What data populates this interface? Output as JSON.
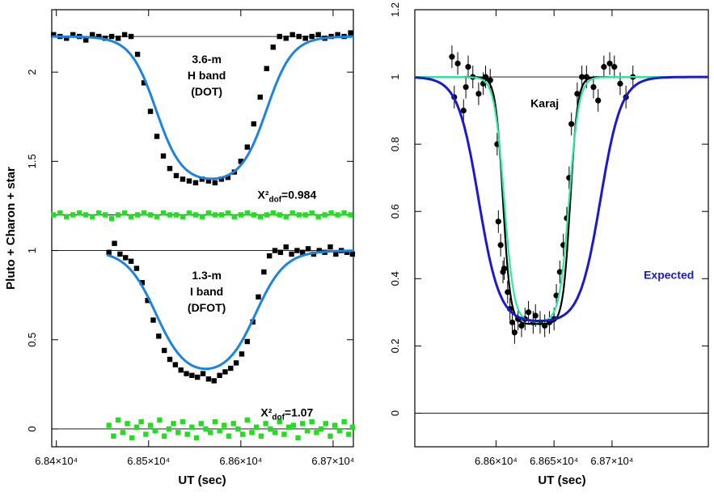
{
  "chart_data": [
    {
      "type": "scatter",
      "panel": "left",
      "xlabel": "UT (sec)",
      "ylabel": "Pluto + Charon + star",
      "xlim": [
        68395,
        68722
      ],
      "ylim": [
        -0.1,
        2.35
      ],
      "x_ticks": [
        {
          "value": 68400,
          "label": "6.84×10⁴"
        },
        {
          "value": 68500,
          "label": "6.85×10⁴"
        },
        {
          "value": 68600,
          "label": "6.86×10⁴"
        },
        {
          "value": 68700,
          "label": "6.87×10⁴"
        }
      ],
      "y_ticks": [
        {
          "value": 0,
          "label": "0"
        },
        {
          "value": 0.5,
          "label": "0.5"
        },
        {
          "value": 1,
          "label": "1"
        },
        {
          "value": 1.5,
          "label": "1.5"
        },
        {
          "value": 2,
          "label": "2"
        }
      ],
      "reference_lines": [
        2.2,
        1.2,
        1.0,
        0.0
      ],
      "annotations": [
        {
          "lines": [
            "3.6-m",
            "H band",
            "(DOT)"
          ],
          "x": 68563,
          "y": 2.05
        },
        {
          "text": "X²dof=0.984",
          "x": 68650,
          "y": 1.29
        },
        {
          "lines": [
            "1.3-m",
            "I band",
            "(DFOT)"
          ],
          "x": 68563,
          "y": 0.84
        },
        {
          "text": "X²dof=1.07",
          "x": 68650,
          "y": 0.07
        }
      ],
      "series": [
        {
          "role": "data",
          "marker": "square",
          "color": "#000000",
          "segment": "H band",
          "x": [
            68397,
            68404,
            68411,
            68418,
            68425,
            68432,
            68439,
            68446,
            68453,
            68460,
            68467,
            68474,
            68481,
            68488,
            68495,
            68502,
            68509,
            68516,
            68523,
            68530,
            68537,
            68544,
            68551,
            68558,
            68565,
            68572,
            68579,
            68586,
            68593,
            68600,
            68607,
            68614,
            68621,
            68628,
            68635,
            68642,
            68649,
            68656,
            68663,
            68670,
            68677,
            68684,
            68691,
            68698,
            68705,
            68712,
            68719
          ],
          "y": [
            2.21,
            2.2,
            2.19,
            2.21,
            2.2,
            2.18,
            2.21,
            2.2,
            2.19,
            2.2,
            2.19,
            2.21,
            2.2,
            2.1,
            1.94,
            1.78,
            1.64,
            1.53,
            1.46,
            1.42,
            1.4,
            1.39,
            1.38,
            1.4,
            1.39,
            1.38,
            1.4,
            1.41,
            1.44,
            1.5,
            1.58,
            1.71,
            1.86,
            2.02,
            2.14,
            2.2,
            2.19,
            2.21,
            2.2,
            2.19,
            2.2,
            2.21,
            2.19,
            2.2,
            2.21,
            2.2,
            2.22
          ]
        },
        {
          "role": "fit",
          "color": "#1a84e0",
          "segment": "H band",
          "baseline": 2.2,
          "bottom": 1.38,
          "ingress": 68508,
          "egress": 68628,
          "width": 14
        },
        {
          "role": "residuals",
          "marker": "square",
          "color": "#22dd22",
          "segment": "H band",
          "level": 1.2,
          "x": [
            68397,
            68404,
            68411,
            68418,
            68425,
            68432,
            68439,
            68446,
            68453,
            68460,
            68467,
            68474,
            68481,
            68488,
            68495,
            68502,
            68509,
            68516,
            68523,
            68530,
            68537,
            68544,
            68551,
            68558,
            68565,
            68572,
            68579,
            68586,
            68593,
            68600,
            68607,
            68614,
            68621,
            68628,
            68635,
            68642,
            68649,
            68656,
            68663,
            68670,
            68677,
            68684,
            68691,
            68698,
            68705,
            68712,
            68719
          ],
          "y": [
            1.2,
            1.21,
            1.19,
            1.2,
            1.21,
            1.2,
            1.19,
            1.21,
            1.2,
            1.18,
            1.2,
            1.21,
            1.19,
            1.2,
            1.21,
            1.2,
            1.19,
            1.21,
            1.2,
            1.2,
            1.19,
            1.21,
            1.2,
            1.19,
            1.21,
            1.2,
            1.2,
            1.21,
            1.19,
            1.2,
            1.21,
            1.2,
            1.19,
            1.2,
            1.21,
            1.2,
            1.19,
            1.21,
            1.2,
            1.2,
            1.21,
            1.19,
            1.2,
            1.21,
            1.2,
            1.21,
            1.2
          ]
        },
        {
          "role": "data",
          "marker": "square",
          "color": "#000000",
          "segment": "I band",
          "x": [
            68457,
            68463,
            68469,
            68475,
            68481,
            68487,
            68493,
            68499,
            68505,
            68511,
            68517,
            68523,
            68529,
            68535,
            68541,
            68547,
            68553,
            68559,
            68565,
            68571,
            68577,
            68583,
            68589,
            68595,
            68601,
            68607,
            68613,
            68619,
            68625,
            68631,
            68637,
            68643,
            68649,
            68655,
            68661,
            68667,
            68673,
            68679,
            68685,
            68691,
            68697,
            68703,
            68709,
            68715,
            68721
          ],
          "y": [
            0.99,
            1.04,
            0.98,
            0.96,
            0.94,
            0.9,
            0.82,
            0.72,
            0.61,
            0.52,
            0.44,
            0.39,
            0.36,
            0.33,
            0.31,
            0.3,
            0.29,
            0.31,
            0.28,
            0.27,
            0.3,
            0.32,
            0.34,
            0.37,
            0.42,
            0.49,
            0.6,
            0.74,
            0.88,
            0.97,
            1.0,
            0.99,
            1.02,
            0.98,
            1.0,
            0.99,
            1.01,
            0.98,
            1.0,
            0.99,
            1.02,
            0.98,
            1.0,
            0.99,
            0.98
          ]
        },
        {
          "role": "fit",
          "color": "#1a84e0",
          "segment": "I band",
          "baseline": 1.0,
          "bottom": 0.29,
          "ingress": 68508,
          "egress": 68616,
          "width": 16
        },
        {
          "role": "residuals",
          "marker": "square",
          "color": "#22dd22",
          "segment": "I band",
          "level": 0.0,
          "x": [
            68457,
            68462,
            68467,
            68472,
            68477,
            68482,
            68487,
            68492,
            68497,
            68502,
            68507,
            68512,
            68517,
            68522,
            68527,
            68532,
            68537,
            68542,
            68547,
            68552,
            68557,
            68562,
            68567,
            68572,
            68577,
            68582,
            68587,
            68592,
            68597,
            68602,
            68607,
            68612,
            68617,
            68622,
            68627,
            68632,
            68637,
            68642,
            68647,
            68652,
            68657,
            68662,
            68667,
            68672,
            68677,
            68682,
            68687,
            68692,
            68697,
            68702,
            68707,
            68712,
            68717,
            68721
          ],
          "y": [
            0.02,
            -0.04,
            0.05,
            -0.02,
            0.03,
            -0.05,
            0.01,
            0.04,
            -0.03,
            0.02,
            -0.01,
            0.05,
            -0.04,
            0.0,
            0.03,
            -0.02,
            0.04,
            -0.03,
            0.01,
            -0.05,
            0.03,
            0.0,
            -0.02,
            0.04,
            -0.01,
            0.02,
            -0.04,
            0.03,
            0.0,
            -0.03,
            0.05,
            -0.02,
            0.01,
            -0.04,
            0.03,
            0.0,
            -0.02,
            0.04,
            -0.03,
            0.01,
            0.02,
            -0.05,
            0.03,
            -0.01,
            0.04,
            -0.02,
            0.0,
            0.03,
            -0.04,
            0.02,
            -0.01,
            0.04,
            -0.03,
            0.01
          ]
        }
      ]
    },
    {
      "type": "scatter",
      "panel": "right",
      "xlabel": "UT (sec)",
      "ylabel": "",
      "xlim": [
        68530,
        68783
      ],
      "ylim": [
        -0.1,
        1.2
      ],
      "x_ticks": [
        {
          "value": 68600,
          "label": "6.86×10⁴"
        },
        {
          "value": 68650,
          "label": "6.865×10⁴"
        },
        {
          "value": 68700,
          "label": "6.87×10⁴"
        }
      ],
      "y_ticks": [
        {
          "value": 0,
          "label": "0"
        },
        {
          "value": 0.2,
          "label": "0.2"
        },
        {
          "value": 0.4,
          "label": "0.4"
        },
        {
          "value": 0.6,
          "label": "0.6"
        },
        {
          "value": 0.8,
          "label": "0.8"
        },
        {
          "value": 1,
          "label": "1"
        },
        {
          "value": 1.2,
          "label": "1.2"
        }
      ],
      "reference_lines": [
        1.0,
        0.0
      ],
      "annotations": [
        {
          "text": "Karaj",
          "x": 68642,
          "y": 0.91,
          "color": "#000000"
        },
        {
          "text": "Expected",
          "x": 68749,
          "y": 0.4,
          "color": "#1a1acc"
        }
      ],
      "series": [
        {
          "role": "data",
          "marker": "circle",
          "color": "#000000",
          "error_bars": true,
          "x": [
            68562,
            68564,
            68567,
            68572,
            68574,
            68576,
            68580,
            68585,
            68589,
            68591,
            68595,
            68601,
            68602,
            68604,
            68606,
            68607,
            68610,
            68612,
            68614,
            68616,
            68619,
            68622,
            68625,
            68628,
            68632,
            68634,
            68638,
            68642,
            68646,
            68650,
            68652,
            68655,
            68658,
            68661,
            68663,
            68665,
            68670,
            68674,
            68678,
            68684,
            68688,
            68693,
            68698,
            68702,
            68707,
            68712,
            68718
          ],
          "y": [
            1.06,
            0.94,
            1.04,
            0.9,
            0.97,
            1.03,
            1.0,
            0.95,
            0.98,
            1.0,
            0.99,
            0.8,
            0.57,
            0.5,
            0.42,
            0.43,
            0.36,
            0.31,
            0.27,
            0.24,
            0.28,
            0.26,
            0.28,
            0.3,
            0.27,
            0.29,
            0.27,
            0.26,
            0.27,
            0.28,
            0.35,
            0.42,
            0.5,
            0.58,
            0.7,
            0.86,
            0.95,
            1.0,
            1.0,
            0.97,
            0.93,
            1.03,
            1.04,
            1.03,
            0.98,
            0.94,
            1.0
          ]
        },
        {
          "role": "model",
          "color": "#000000",
          "baseline": 1.0,
          "bottom": 0.265,
          "ingress": 68606,
          "egress": 68664,
          "width": 3.2
        },
        {
          "role": "model",
          "color": "#2ee8a0",
          "baseline": 1.0,
          "bottom": 0.27,
          "ingress": 68607,
          "egress": 68663,
          "width": 4.2
        },
        {
          "role": "model",
          "name": "Expected",
          "color": "#1a1acc",
          "baseline": 1.0,
          "bottom": 0.27,
          "ingress": 68585,
          "egress": 68690,
          "width": 9
        }
      ]
    }
  ]
}
